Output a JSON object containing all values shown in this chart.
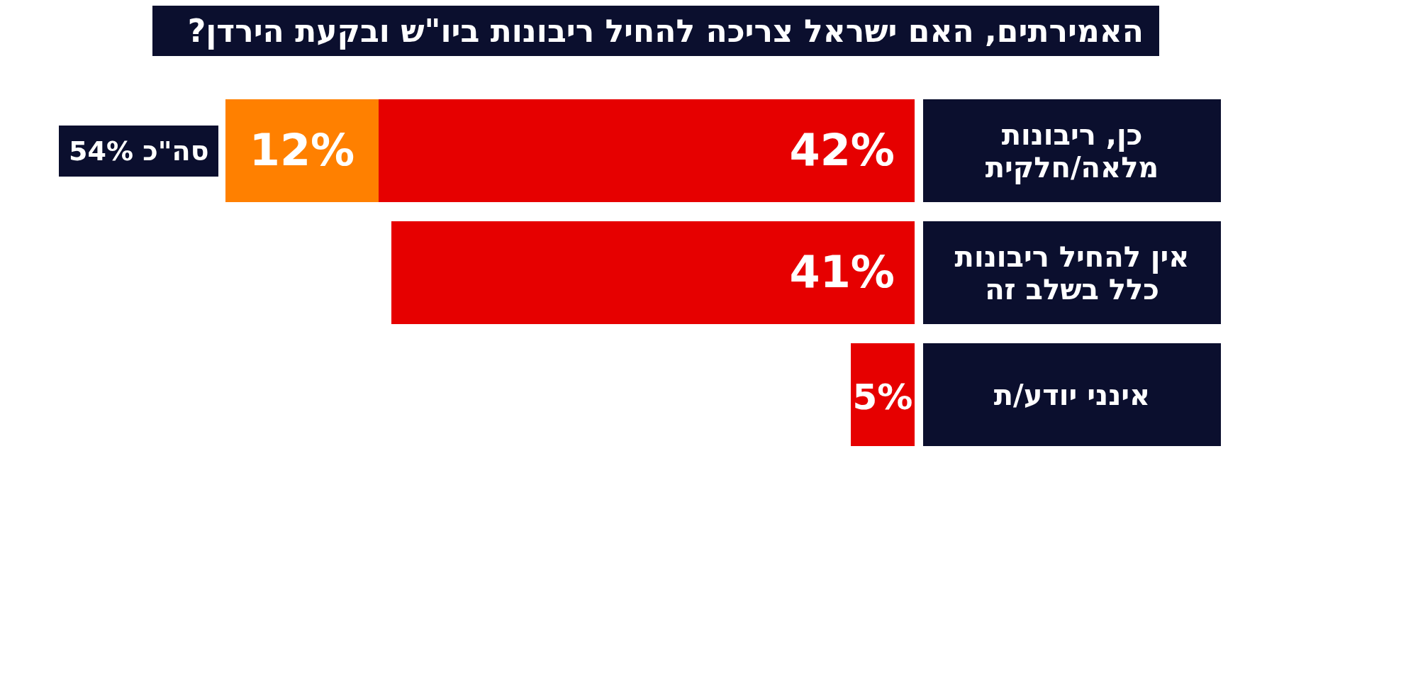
{
  "chart_data": {
    "type": "bar",
    "orientation": "horizontal",
    "stacked": true,
    "title": "האמירתים, האם ישראל צריכה להחיל ריבונות ביו\"ש ובקעת הירדן?",
    "categories": [
      "כן, ריבונות מלאה/חלקית",
      "אין להחיל ריבונות כלל בשלב זה",
      "אינני יודע/ת"
    ],
    "series": [
      {
        "color": "#e60000",
        "values": [
          42,
          41,
          5
        ],
        "value_labels": [
          "42%",
          "41%",
          "5%"
        ]
      },
      {
        "color": "#ff8000",
        "values": [
          12,
          null,
          null
        ],
        "value_labels": [
          "12%",
          null,
          null
        ]
      }
    ],
    "totals": [
      "סה\"כ 54%",
      null,
      null
    ]
  }
}
